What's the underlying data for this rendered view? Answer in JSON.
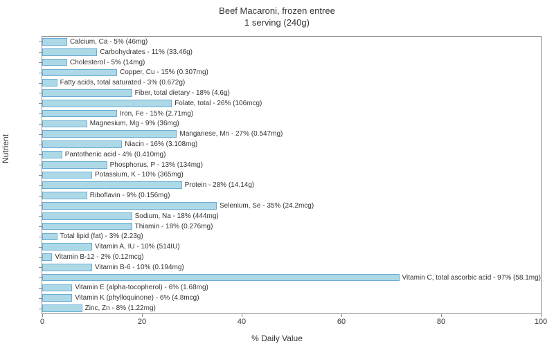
{
  "chart": {
    "type": "bar",
    "title_line1": "Beef Macaroni, frozen entree",
    "title_line2": "1 serving (240g)",
    "title_fontsize": 13,
    "xlabel": "% Daily Value",
    "ylabel": "Nutrient",
    "label_fontsize": 12,
    "xlim": [
      0,
      100
    ],
    "xtick_step": 20,
    "xticks": [
      0,
      20,
      40,
      60,
      80,
      100
    ],
    "bar_color": "#add8e6",
    "bar_border_color": "#6baed6",
    "background_color": "#ffffff",
    "plot_border_color": "#888888",
    "text_color": "#333333",
    "bar_label_fontsize": 10,
    "tick_fontsize": 11,
    "nutrients": [
      {
        "label": "Calcium, Ca - 5% (46mg)",
        "value": 5
      },
      {
        "label": "Carbohydrates - 11% (33.46g)",
        "value": 11
      },
      {
        "label": "Cholesterol - 5% (14mg)",
        "value": 5
      },
      {
        "label": "Copper, Cu - 15% (0.307mg)",
        "value": 15
      },
      {
        "label": "Fatty acids, total saturated - 3% (0.672g)",
        "value": 3
      },
      {
        "label": "Fiber, total dietary - 18% (4.6g)",
        "value": 18
      },
      {
        "label": "Folate, total - 26% (106mcg)",
        "value": 26
      },
      {
        "label": "Iron, Fe - 15% (2.71mg)",
        "value": 15
      },
      {
        "label": "Magnesium, Mg - 9% (36mg)",
        "value": 9
      },
      {
        "label": "Manganese, Mn - 27% (0.547mg)",
        "value": 27
      },
      {
        "label": "Niacin - 16% (3.108mg)",
        "value": 16
      },
      {
        "label": "Pantothenic acid - 4% (0.410mg)",
        "value": 4
      },
      {
        "label": "Phosphorus, P - 13% (134mg)",
        "value": 13
      },
      {
        "label": "Potassium, K - 10% (365mg)",
        "value": 10
      },
      {
        "label": "Protein - 28% (14.14g)",
        "value": 28
      },
      {
        "label": "Riboflavin - 9% (0.156mg)",
        "value": 9
      },
      {
        "label": "Selenium, Se - 35% (24.2mcg)",
        "value": 35
      },
      {
        "label": "Sodium, Na - 18% (444mg)",
        "value": 18
      },
      {
        "label": "Thiamin - 18% (0.276mg)",
        "value": 18
      },
      {
        "label": "Total lipid (fat) - 3% (2.23g)",
        "value": 3
      },
      {
        "label": "Vitamin A, IU - 10% (514IU)",
        "value": 10
      },
      {
        "label": "Vitamin B-12 - 2% (0.12mcg)",
        "value": 2
      },
      {
        "label": "Vitamin B-6 - 10% (0.194mg)",
        "value": 10
      },
      {
        "label": "Vitamin C, total ascorbic acid - 97% (58.1mg)",
        "value": 97
      },
      {
        "label": "Vitamin E (alpha-tocopherol) - 6% (1.68mg)",
        "value": 6
      },
      {
        "label": "Vitamin K (phylloquinone) - 6% (4.8mcg)",
        "value": 6
      },
      {
        "label": "Zinc, Zn - 8% (1.22mg)",
        "value": 8
      }
    ]
  }
}
